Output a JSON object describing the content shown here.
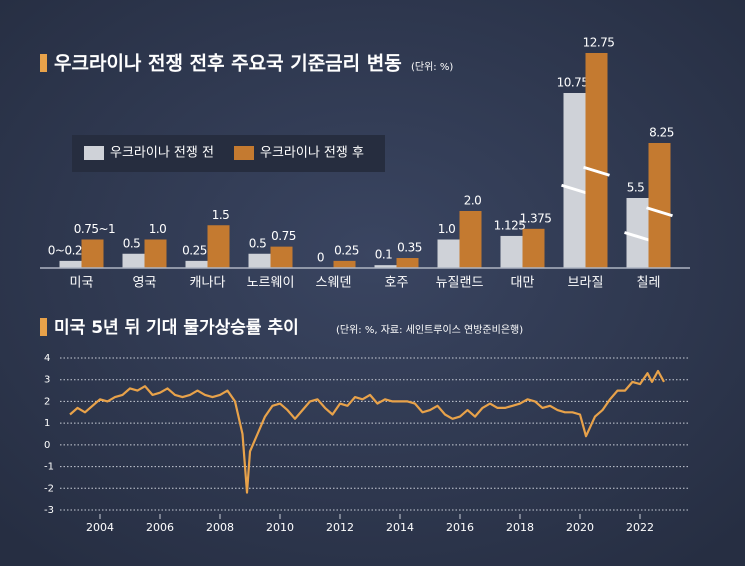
{
  "charts": [
    {
      "type": "bar",
      "title": "우크라이나 전쟁 전후 주요국 기준금리 변동",
      "subtitle": "(단위: %)",
      "categories": [
        "미국",
        "영국",
        "캐나다",
        "노르웨이",
        "스웨덴",
        "호주",
        "뉴질랜드",
        "대만",
        "브라질",
        "칠레"
      ],
      "series": [
        {
          "name": "우크라이나 전쟁 전",
          "color": "#cfd2d8",
          "values": [
            0.25,
            0.5,
            0.25,
            0.5,
            0,
            0.1,
            1.0,
            1.125,
            10.75,
            5.5
          ],
          "value_labels": [
            "0~0.25",
            "0.5",
            "0.25",
            "0.5",
            "0",
            "0.1",
            "1.0",
            "1.125",
            "10.75",
            "5.5"
          ]
        },
        {
          "name": "우크라이나 전쟁 후",
          "color": "#c47a30",
          "values": [
            1,
            1.0,
            1.5,
            0.75,
            0.25,
            0.35,
            2.0,
            1.375,
            12.75,
            8.25
          ],
          "value_labels": [
            "0.75~1",
            "1.0",
            "1.5",
            "0.75",
            "0.25",
            "0.35",
            "2.0",
            "1.375",
            "12.75",
            "8.25"
          ]
        }
      ]
    },
    {
      "type": "line",
      "title": "미국 5년 뒤 기대 물가상승률 추이",
      "subtitle": "(단위: %, 자료: 세인트루이스 연방준비은행)",
      "x": [
        2003.0,
        2003.25,
        2003.5,
        2003.75,
        2004.0,
        2004.25,
        2004.5,
        2004.75,
        2005.0,
        2005.25,
        2005.5,
        2005.75,
        2006.0,
        2006.25,
        2006.5,
        2006.75,
        2007.0,
        2007.25,
        2007.5,
        2007.75,
        2008.0,
        2008.25,
        2008.5,
        2008.75,
        2008.9,
        2009.0,
        2009.25,
        2009.5,
        2009.75,
        2010.0,
        2010.25,
        2010.5,
        2010.75,
        2011.0,
        2011.25,
        2011.5,
        2011.75,
        2012.0,
        2012.25,
        2012.5,
        2012.75,
        2013.0,
        2013.25,
        2013.5,
        2013.75,
        2014.0,
        2014.25,
        2014.5,
        2014.75,
        2015.0,
        2015.25,
        2015.5,
        2015.75,
        2016.0,
        2016.25,
        2016.5,
        2016.75,
        2017.0,
        2017.25,
        2017.5,
        2017.75,
        2018.0,
        2018.25,
        2018.5,
        2018.75,
        2019.0,
        2019.25,
        2019.5,
        2019.75,
        2020.0,
        2020.2,
        2020.5,
        2020.75,
        2021.0,
        2021.25,
        2021.5,
        2021.75,
        2022.0,
        2022.25,
        2022.4,
        2022.6,
        2022.8
      ],
      "series": [
        {
          "name": null,
          "color": "#e8a24a",
          "values": [
            1.4,
            1.7,
            1.5,
            1.8,
            2.1,
            2.0,
            2.2,
            2.3,
            2.6,
            2.5,
            2.7,
            2.3,
            2.4,
            2.6,
            2.3,
            2.2,
            2.3,
            2.5,
            2.3,
            2.2,
            2.3,
            2.5,
            2.0,
            0.5,
            -2.2,
            -0.3,
            0.5,
            1.3,
            1.8,
            1.9,
            1.6,
            1.2,
            1.6,
            2.0,
            2.1,
            1.7,
            1.4,
            1.9,
            1.8,
            2.2,
            2.1,
            2.3,
            1.9,
            2.1,
            2.0,
            2.0,
            2.0,
            1.9,
            1.5,
            1.6,
            1.8,
            1.4,
            1.2,
            1.3,
            1.6,
            1.3,
            1.7,
            1.9,
            1.7,
            1.7,
            1.8,
            1.9,
            2.1,
            2.0,
            1.7,
            1.8,
            1.6,
            1.5,
            1.5,
            1.4,
            0.4,
            1.3,
            1.6,
            2.1,
            2.5,
            2.5,
            2.9,
            2.8,
            3.3,
            2.9,
            3.4,
            2.9
          ]
        }
      ],
      "xlim": [
        2002.9,
        2023.5
      ],
      "xticks": [
        2004,
        2006,
        2008,
        2010,
        2012,
        2014,
        2016,
        2018,
        2020,
        2022
      ],
      "ylim": [
        -3,
        4
      ],
      "yticks": [
        4,
        3,
        2,
        1,
        0,
        -1,
        -2,
        -3
      ],
      "grid": true
    }
  ]
}
